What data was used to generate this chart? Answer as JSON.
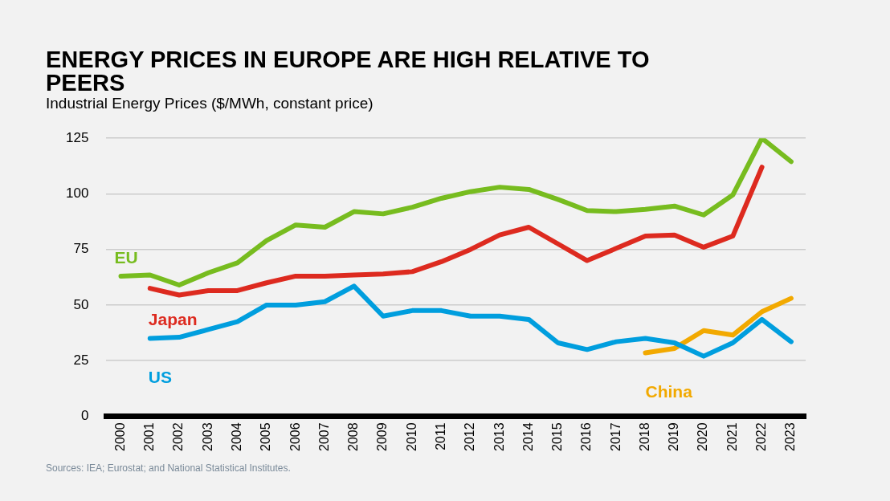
{
  "chart_data": {
    "type": "line",
    "title": "ENERGY PRICES IN EUROPE ARE HIGH RELATIVE TO PEERS",
    "subtitle": "Industrial Energy Prices ($/MWh, constant price)",
    "categories": [
      "2000",
      "2001",
      "2002",
      "2003",
      "2004",
      "2005",
      "2006",
      "2007",
      "2008",
      "2009",
      "2010",
      "2011",
      "2012",
      "2013",
      "2014",
      "2015",
      "2016",
      "2017",
      "2018",
      "2019",
      "2020",
      "2021",
      "2022",
      "2023"
    ],
    "series": [
      {
        "name": "EU",
        "color": "#77bc1f",
        "values": [
          63,
          63.5,
          59,
          64.5,
          69,
          79,
          86,
          85,
          92,
          91,
          94,
          98,
          101,
          103,
          102,
          97.5,
          92.5,
          92,
          93,
          94.5,
          90.5,
          99.5,
          125,
          114.5
        ]
      },
      {
        "name": "Japan",
        "color": "#dd2a1f",
        "values": [
          null,
          57.5,
          54.5,
          56.5,
          56.5,
          60,
          63,
          63,
          63.5,
          64,
          65,
          69.5,
          75,
          81.5,
          85,
          77.5,
          70,
          75.5,
          81,
          81.5,
          76,
          81,
          112,
          null
        ]
      },
      {
        "name": "US",
        "color": "#009ede",
        "values": [
          null,
          35,
          35.5,
          39,
          42.5,
          50,
          50,
          51.5,
          58.5,
          45,
          47.5,
          47.5,
          45,
          45,
          43.5,
          33,
          30,
          33.5,
          35,
          33,
          27,
          33,
          43.5,
          33.5
        ]
      },
      {
        "name": "China",
        "color": "#f2a900",
        "values": [
          null,
          null,
          null,
          null,
          null,
          null,
          null,
          null,
          null,
          null,
          null,
          null,
          null,
          null,
          null,
          null,
          null,
          null,
          28.5,
          30.5,
          38.5,
          36.5,
          47,
          53
        ]
      }
    ],
    "ylim": [
      0,
      125
    ],
    "yticks": [
      0,
      25,
      50,
      75,
      100,
      125
    ],
    "grid": "y",
    "legend": false,
    "marker": "none",
    "line_style": "solid",
    "annotations": [
      "Sources: IEA; Eurostat; and National Statistical Institutes."
    ]
  }
}
